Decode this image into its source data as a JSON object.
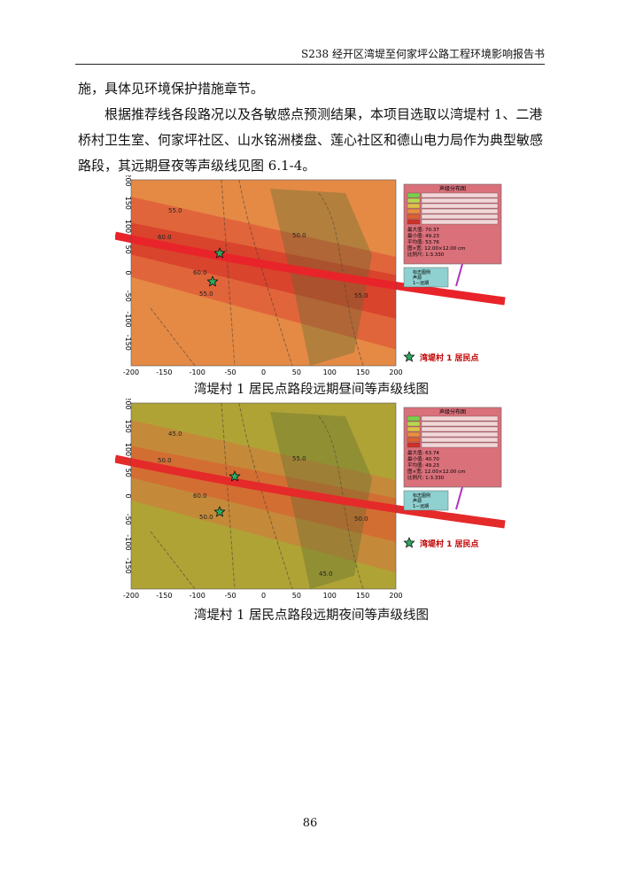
{
  "header": {
    "title": "S238 经开区湾堤至何家坪公路工程环境影响报告书"
  },
  "paragraphs": [
    "施，具体见环境保护措施章节。",
    "根据推荐线各段路况以及各敏感点预测结果，本项目选取以湾堤村 1、二港桥村卫生室、何家坪社区、山水铭洲楼盘、莲心社区和德山电力局作为典型敏感路段，其远期昼夜等声级线见图 6.1-4。"
  ],
  "figures": [
    {
      "x_ticks": [
        -200,
        -150,
        -100,
        -50,
        0,
        50,
        100,
        150,
        200
      ],
      "y_ticks": [
        200,
        150,
        100,
        50,
        0,
        -50,
        -100,
        -150
      ],
      "legend_title": "声级分布图",
      "stats": [
        "最大值: 70.37",
        "最小值: 49.23",
        "平均值: 53.76",
        "图×宽: 12.00×12.00 cm",
        "比例尺: 1:3.330"
      ],
      "route_legend": [
        "标志图例",
        "声源",
        "1—远期"
      ],
      "contour_labels": [
        "55.0",
        "60.0",
        "50.0",
        "60.0",
        "55.0",
        "55.0"
      ],
      "marker_label": "湾堤村 1 居民点",
      "caption": "湾堤村 1 居民点路段远期昼间等声级线图"
    },
    {
      "x_ticks": [
        -200,
        -150,
        -100,
        -50,
        0,
        50,
        100,
        150,
        200
      ],
      "y_ticks": [
        200,
        150,
        100,
        50,
        0,
        -50,
        -100,
        -150
      ],
      "legend_title": "声级分布图",
      "stats": [
        "最大值: 63.74",
        "最小值: 40.70",
        "平均值: 49.23",
        "图×宽: 12.00×12.00 cm",
        "比例尺: 1:3.330"
      ],
      "route_legend": [
        "标志图例",
        "声源",
        "1—远期"
      ],
      "contour_labels": [
        "45.0",
        "50.0",
        "55.0",
        "60.0",
        "50.0",
        "50.0",
        "45.0"
      ],
      "marker_label": "湾堤村 1 居民点",
      "caption": "湾堤村 1 居民点路段远期夜间等声级线图"
    }
  ],
  "page_number": "86"
}
